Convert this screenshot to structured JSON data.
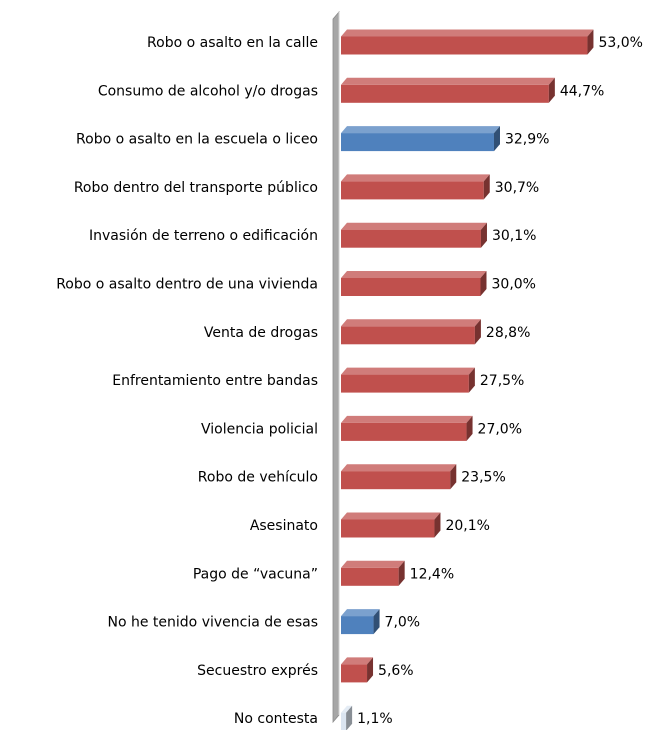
{
  "chart_data": {
    "type": "bar",
    "orientation": "horizontal",
    "style": "3d",
    "categories": [
      "Robo o asalto en la calle",
      "Consumo de  alcohol y/o drogas",
      "Robo o asalto en la escuela o liceo",
      "Robo dentro del transporte público",
      "Invasión de terreno o edificación",
      "Robo o asalto dentro de una vivienda",
      "Venta de drogas",
      "Enfrentamiento entre bandas",
      "Violencia policial",
      "Robo de vehículo",
      "Asesinato",
      "Pago de “vacuna”",
      "No he tenido vivencia de esas",
      "Secuestro exprés",
      "No contesta"
    ],
    "values": [
      53.0,
      44.7,
      32.9,
      30.7,
      30.1,
      30.0,
      28.8,
      27.5,
      27.0,
      23.5,
      20.1,
      12.4,
      7.0,
      5.6,
      1.1
    ],
    "value_labels": [
      "53,0%",
      "44,7%",
      "32,9%",
      "30,7%",
      "30,1%",
      "30,0%",
      "28,8%",
      "27,5%",
      "27,0%",
      "23,5%",
      "20,1%",
      "12,4%",
      "7,0%",
      "5,6%",
      "1,1%"
    ],
    "bar_colors": [
      "#c0504d",
      "#c0504d",
      "#4f81bd",
      "#c0504d",
      "#c0504d",
      "#c0504d",
      "#c0504d",
      "#c0504d",
      "#c0504d",
      "#c0504d",
      "#c0504d",
      "#c0504d",
      "#4f81bd",
      "#c0504d",
      "#dbe5f1"
    ],
    "xlim": [
      0,
      53.0
    ],
    "grid": false,
    "legend": "none",
    "title": "",
    "xlabel": "",
    "ylabel": ""
  }
}
